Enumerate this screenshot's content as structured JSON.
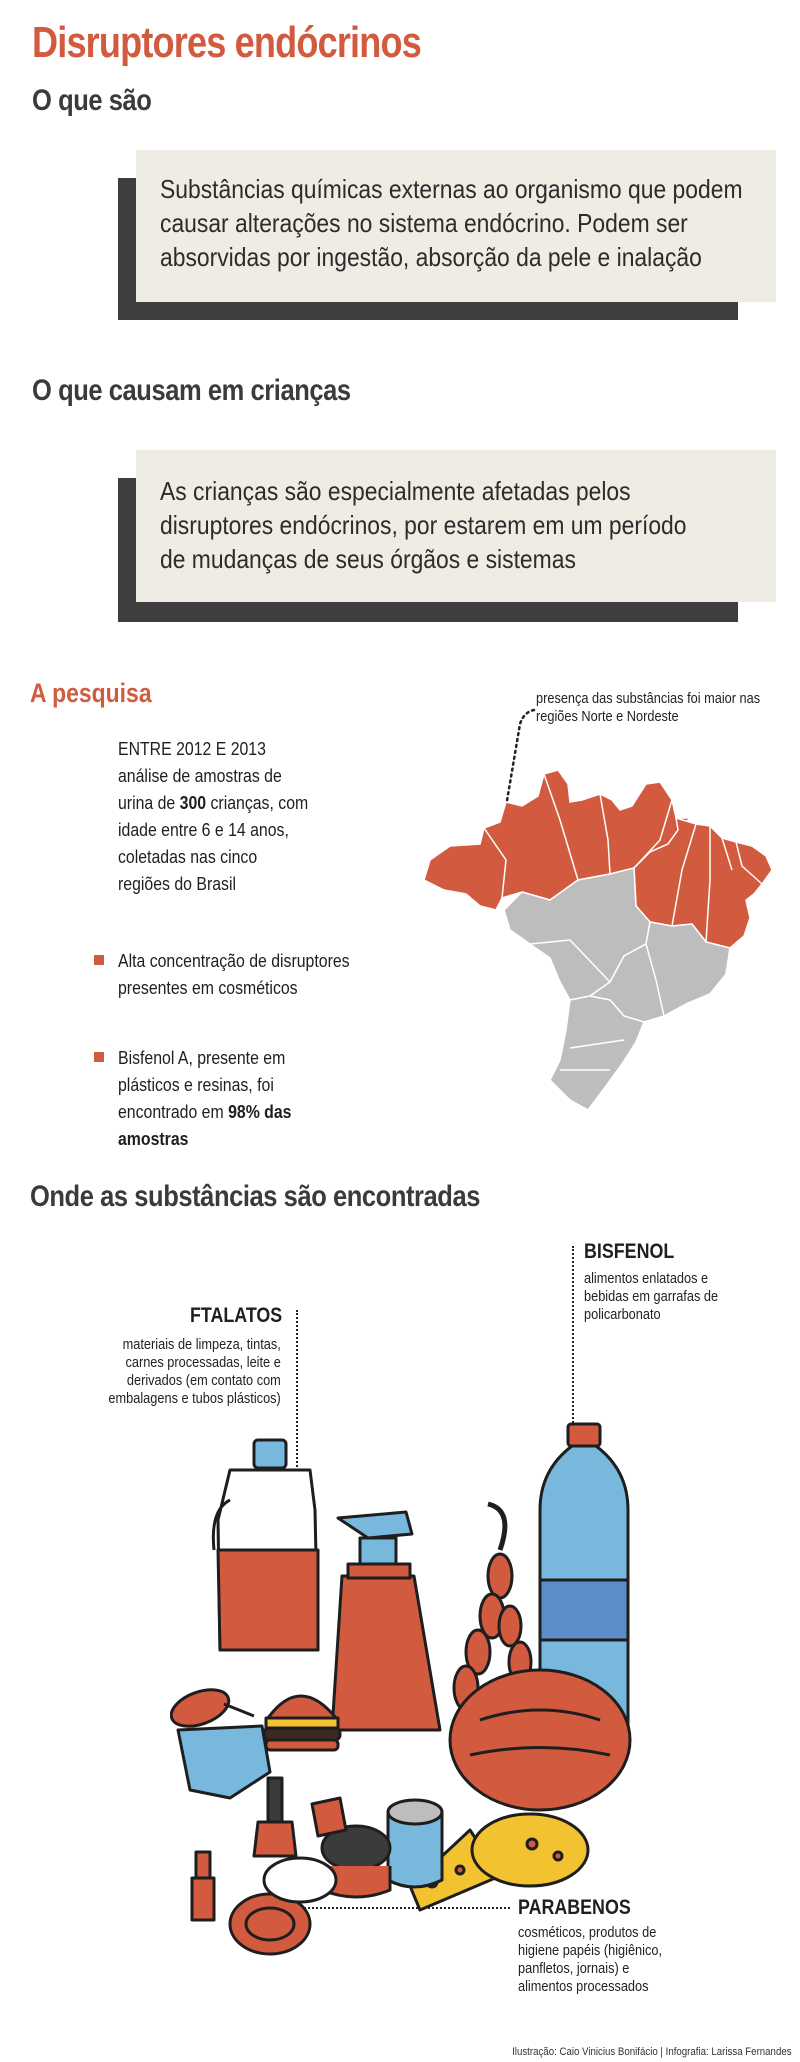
{
  "title": "Disruptores endócrinos",
  "sections": {
    "what": {
      "heading": "O que são",
      "text": "Substâncias químicas externas ao organismo que podem causar alterações no sistema endócrino. Podem ser absorvidas por ingestão, absorção da pele e inalação"
    },
    "causes": {
      "heading": "O que causam em crianças",
      "text": "As crianças são especialmente afetadas pelos disruptores endócrinos, por estarem em um período de mudanças de seus órgãos e sistemas"
    },
    "research": {
      "heading": "A pesquisa",
      "period": "ENTRE 2012 E 2013",
      "desc_pre": "análise de amostras de urina de ",
      "desc_num": "300",
      "desc_post": " crianças, com idade entre 6 e 14 anos, coletadas nas cinco regiões do Brasil",
      "bullet1": "Alta concentração de disruptores presentes em cosméticos",
      "bullet2_pre": "Bisfenol A, presente em plásticos e resinas, foi encontrado em ",
      "bullet2_bold": "98% das amostras",
      "map_note": "presença das substâncias foi maior nas regiões Norte e Nordeste"
    },
    "where": {
      "heading": "Onde as substâncias são encontradas",
      "ftalatos": {
        "name": "FTALATOS",
        "desc": "materiais de limpeza, tintas, carnes processadas, leite e derivados (em contato com embalagens e tubos plásticos)"
      },
      "bisfenol": {
        "name": "BISFENOL",
        "desc": "alimentos enlatados e bebidas em garrafas de policarbonato"
      },
      "parabenos": {
        "name": "PARABENOS",
        "desc": "cosméticos, produtos de higiene papéis (higiênico, panfletos, jornais) e alimentos processados"
      }
    }
  },
  "credits": "Ilustração: Caio Vinicius Bonifácio | Infografia: Larissa Fernandes",
  "colors": {
    "accent": "#d25b3f",
    "box_bg": "#eeece3",
    "box_shadow": "#3e3e3e",
    "map_highlight": "#d25b3f",
    "map_other": "#bdbdbd",
    "bottle_blue": "#79b8dd"
  }
}
